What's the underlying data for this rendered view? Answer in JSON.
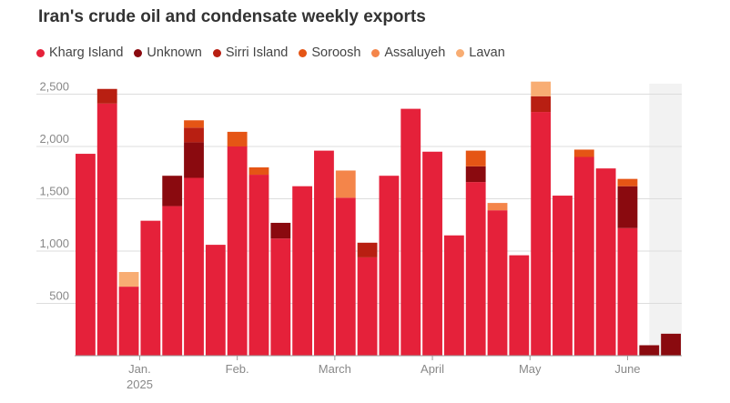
{
  "chart_data": {
    "type": "bar",
    "stacked": true,
    "title": "Iran's crude oil and condensate weekly exports",
    "ylim": [
      0,
      2600
    ],
    "yticks": [
      500,
      1000,
      1500,
      2000,
      2500
    ],
    "ytick_labels": [
      "500",
      "1,000",
      "1,500",
      "2,000",
      "2,500"
    ],
    "xtick_labels": [
      {
        "label": "Jan.",
        "sub": "2025",
        "index": 2.5
      },
      {
        "label": "Feb.",
        "sub": "",
        "index": 7
      },
      {
        "label": "March",
        "sub": "",
        "index": 11.5
      },
      {
        "label": "April",
        "sub": "",
        "index": 16
      },
      {
        "label": "May",
        "sub": "",
        "index": 20.5
      },
      {
        "label": "June",
        "sub": "",
        "index": 25
      }
    ],
    "highlight_range": [
      26.5,
      28
    ],
    "series": [
      {
        "name": "Kharg Island",
        "color": "#e5213a",
        "values": [
          1930,
          2410,
          660,
          1290,
          1430,
          1700,
          1060,
          2000,
          1730,
          1120,
          1620,
          1960,
          1510,
          940,
          1720,
          2360,
          1950,
          1150,
          1660,
          1390,
          960,
          2330,
          1530,
          1900,
          1790,
          1220,
          0,
          0
        ]
      },
      {
        "name": "Unknown",
        "color": "#8a0a0f",
        "values": [
          0,
          0,
          0,
          0,
          290,
          340,
          0,
          0,
          0,
          150,
          0,
          0,
          0,
          0,
          0,
          0,
          0,
          0,
          150,
          0,
          0,
          0,
          0,
          0,
          0,
          400,
          100,
          210
        ]
      },
      {
        "name": "Sirri Island",
        "color": "#b81f12",
        "values": [
          0,
          140,
          0,
          0,
          0,
          140,
          0,
          0,
          0,
          0,
          0,
          0,
          0,
          140,
          0,
          0,
          0,
          0,
          0,
          0,
          0,
          150,
          0,
          0,
          0,
          0,
          0,
          0
        ]
      },
      {
        "name": "Soroosh",
        "color": "#e55515",
        "values": [
          0,
          0,
          0,
          0,
          0,
          70,
          0,
          140,
          70,
          0,
          0,
          0,
          0,
          0,
          0,
          0,
          0,
          0,
          150,
          0,
          0,
          0,
          0,
          70,
          0,
          70,
          0,
          0
        ]
      },
      {
        "name": "Assaluyeh",
        "color": "#f4854a",
        "values": [
          0,
          0,
          0,
          0,
          0,
          0,
          0,
          0,
          0,
          0,
          0,
          0,
          260,
          0,
          0,
          0,
          0,
          0,
          0,
          70,
          0,
          0,
          0,
          0,
          0,
          0,
          0,
          0
        ]
      },
      {
        "name": "Lavan",
        "color": "#f8ad73",
        "values": [
          0,
          0,
          140,
          0,
          0,
          0,
          0,
          0,
          0,
          0,
          0,
          0,
          0,
          0,
          0,
          0,
          0,
          0,
          0,
          0,
          0,
          140,
          0,
          0,
          0,
          0,
          0,
          0
        ]
      }
    ]
  }
}
